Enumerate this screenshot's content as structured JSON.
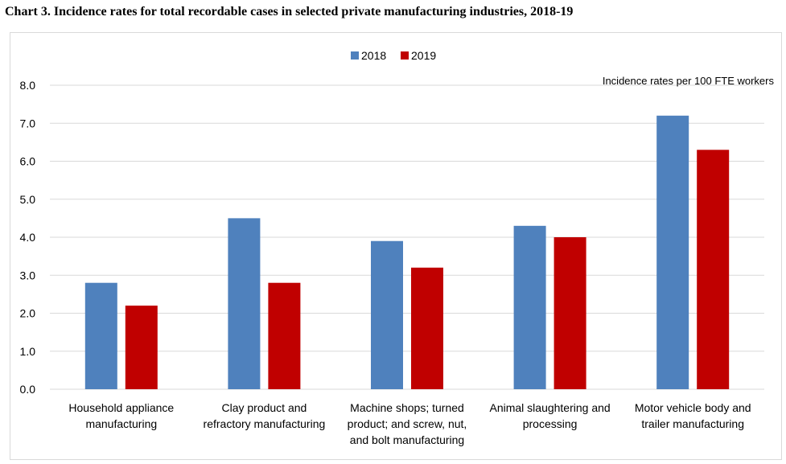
{
  "chart_data": {
    "type": "bar",
    "title": "Chart 3. Incidence rates for total recordable cases in selected private manufacturing industries, 2018-19",
    "annotation": "Incidence rates per 100 FTE workers",
    "categories": [
      [
        "Household appliance",
        "manufacturing"
      ],
      [
        "Clay product and",
        "refractory manufacturing"
      ],
      [
        "Machine shops; turned",
        "product; and screw, nut,",
        "and bolt manufacturing"
      ],
      [
        "Animal slaughtering and",
        "processing"
      ],
      [
        "Motor vehicle body and",
        "trailer manufacturing"
      ]
    ],
    "series": [
      {
        "name": "2018",
        "color": "#4f81bd",
        "values": [
          2.8,
          4.5,
          3.9,
          4.3,
          7.2
        ]
      },
      {
        "name": "2019",
        "color": "#c00000",
        "values": [
          2.2,
          2.8,
          3.2,
          4.0,
          6.3
        ]
      }
    ],
    "ylim": [
      0,
      8
    ],
    "yticks": [
      "0.0",
      "1.0",
      "2.0",
      "3.0",
      "4.0",
      "5.0",
      "6.0",
      "7.0",
      "8.0"
    ],
    "grid": true,
    "legend": "top-center"
  }
}
